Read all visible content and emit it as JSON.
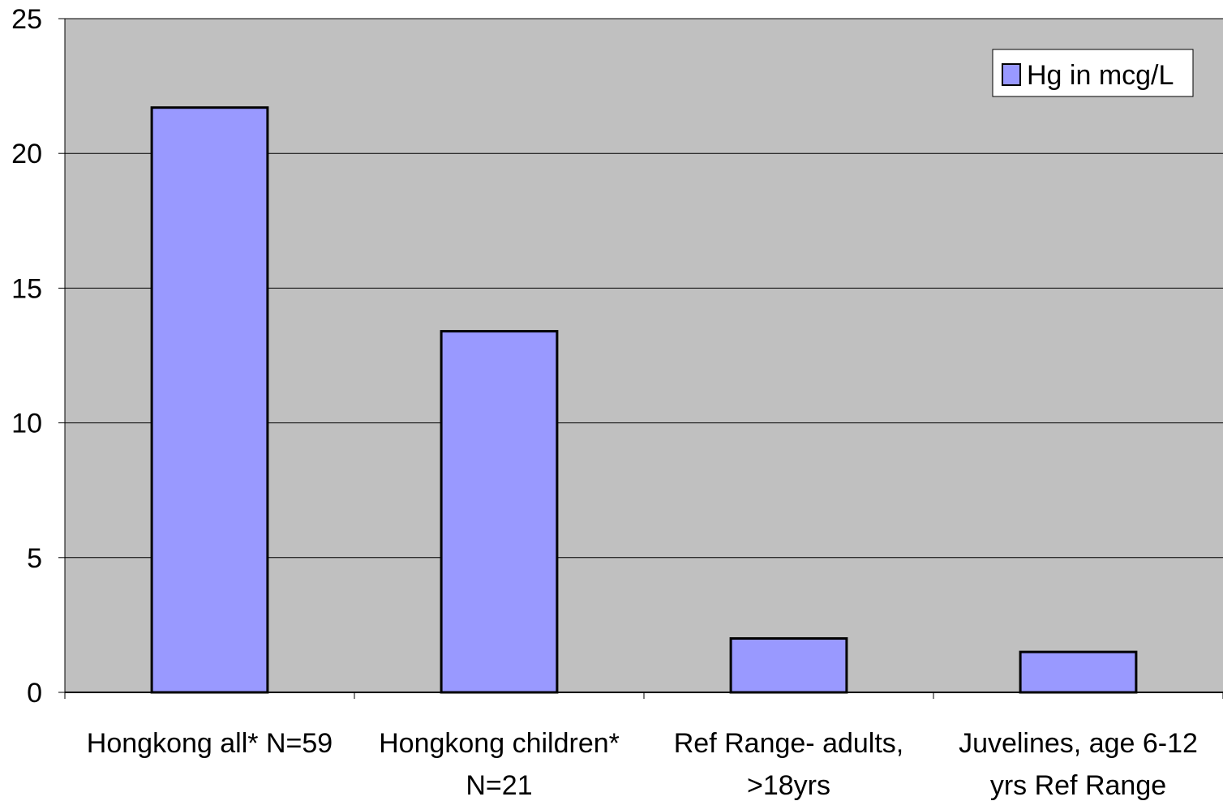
{
  "chart_data": {
    "type": "bar",
    "title": "",
    "xlabel": "",
    "ylabel": "",
    "categories": [
      [
        "Hongkong all* N=59"
      ],
      [
        "Hongkong children*",
        "N=21"
      ],
      [
        "Ref Range- adults,",
        ">18yrs"
      ],
      [
        "Juvelines, age 6-12",
        "yrs Ref Range"
      ]
    ],
    "series": [
      {
        "name": "Hg in mcg/L",
        "values": [
          21.7,
          13.4,
          2.0,
          1.5
        ],
        "color": "#9999ff"
      }
    ],
    "ylim": [
      0,
      25
    ],
    "yticks": [
      0,
      5,
      10,
      15,
      20,
      25
    ],
    "grid": true,
    "legend_position": "top-right",
    "plot_background": "#c0c0c0"
  }
}
